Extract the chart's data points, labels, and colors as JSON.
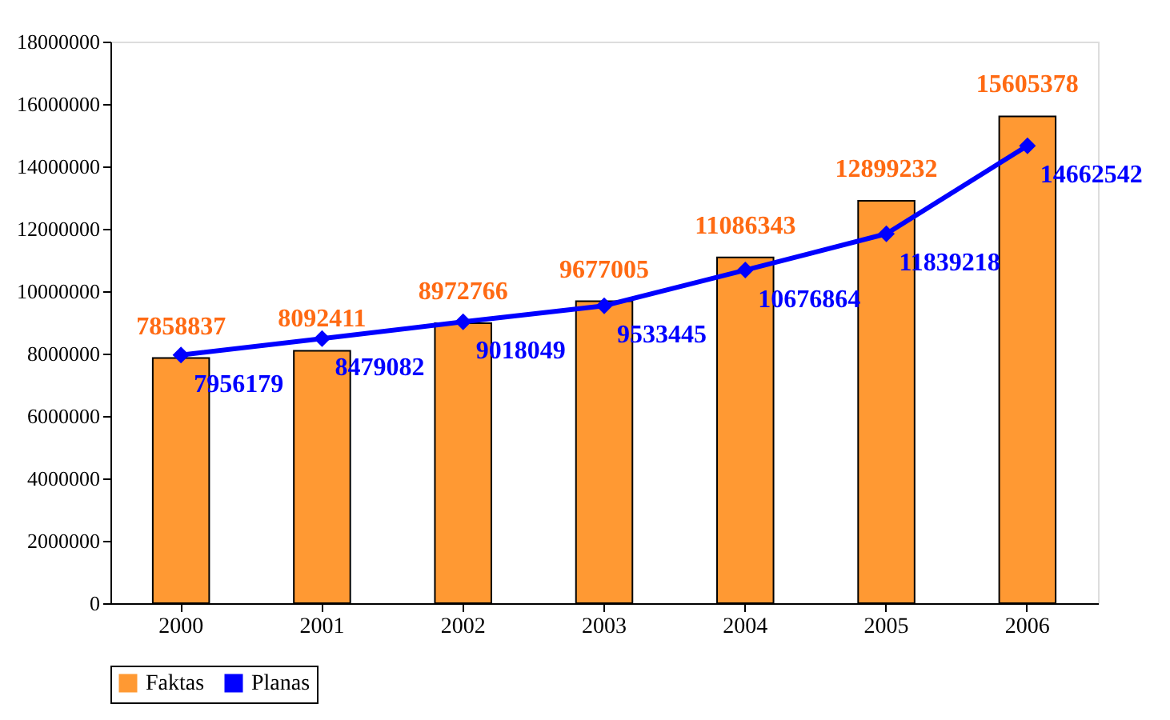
{
  "chart_data": {
    "type": "bar",
    "categories": [
      "2000",
      "2001",
      "2002",
      "2003",
      "2004",
      "2005",
      "2006"
    ],
    "series": [
      {
        "name": "Faktas",
        "color": "#ff9933",
        "values": [
          7858837,
          8092411,
          8972766,
          9677005,
          11086343,
          12899232,
          15605378
        ]
      },
      {
        "name": "Planas",
        "type": "line",
        "color": "#0000ff",
        "values": [
          7956179,
          8479082,
          9018049,
          9533445,
          10676864,
          11839218,
          14662542
        ]
      }
    ],
    "ylim": [
      0,
      18000000
    ],
    "yticks": [
      0,
      2000000,
      4000000,
      6000000,
      8000000,
      10000000,
      12000000,
      14000000,
      16000000,
      18000000
    ],
    "grid": false,
    "legend": "bottom",
    "marker": "diamond",
    "line_style": "solid",
    "data_labels": true
  }
}
